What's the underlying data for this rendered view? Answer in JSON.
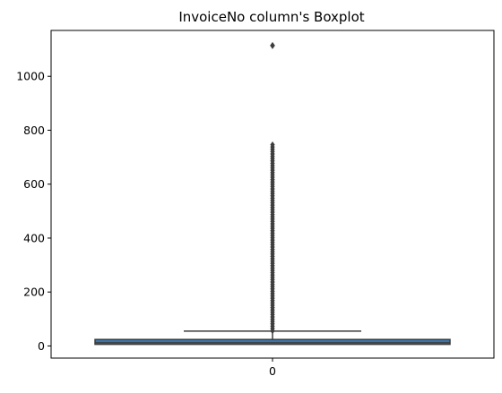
{
  "chart_data": {
    "type": "box",
    "title": "InvoiceNo column's Boxplot",
    "xlabel": "",
    "ylabel": "",
    "categories": [
      "0"
    ],
    "ylim": [
      -45,
      1170
    ],
    "yticks": [
      0,
      200,
      400,
      600,
      800,
      1000
    ],
    "grid": false,
    "box": {
      "category": "0",
      "min": 1,
      "q1": 6,
      "median": 12,
      "q3": 24,
      "whisker_low": 1,
      "whisker_high": 55,
      "outliers_dense_range": [
        56,
        750
      ],
      "outliers_extreme": [
        1114
      ]
    },
    "colors": {
      "box_fill": "#3a75a8",
      "line": "#3d3d3d",
      "outlier": "#3d3d3d",
      "axes": "#000000"
    }
  }
}
